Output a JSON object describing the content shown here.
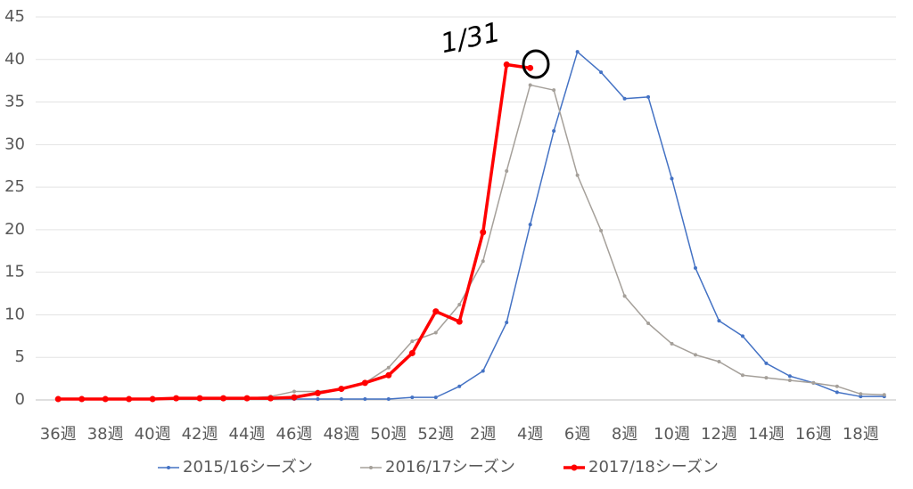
{
  "chart_data": {
    "type": "line",
    "categories": [
      "36週",
      null,
      "38週",
      null,
      "40週",
      null,
      "42週",
      null,
      "44週",
      null,
      "46週",
      null,
      "48週",
      null,
      "50週",
      null,
      "52週",
      null,
      "2週",
      null,
      "4週",
      null,
      "6週",
      null,
      "8週",
      null,
      "10週",
      null,
      "12週",
      null,
      "14週",
      null,
      "16週",
      null,
      "18週",
      null
    ],
    "series": [
      {
        "name": "2015/16シーズン",
        "color": "#4472c4",
        "values": [
          0.1,
          0.1,
          0.1,
          0.1,
          0.1,
          0.1,
          0.1,
          0.1,
          0.1,
          0.1,
          0.1,
          0.1,
          0.1,
          0.1,
          0.1,
          0.3,
          0.3,
          1.6,
          3.4,
          9.1,
          20.6,
          31.6,
          40.9,
          38.5,
          35.4,
          35.6,
          26.0,
          15.5,
          9.3,
          7.5,
          4.3,
          2.8,
          2.0,
          0.9,
          0.4,
          0.4
        ]
      },
      {
        "name": "2016/17シーズン",
        "color": "#a5a09a",
        "values": [
          0.1,
          0.1,
          0.1,
          0.1,
          0.1,
          0.1,
          0.2,
          0.2,
          0.2,
          0.4,
          1.0,
          1.0,
          1.3,
          2.0,
          3.8,
          6.9,
          7.9,
          11.2,
          16.3,
          26.9,
          37.0,
          36.4,
          26.4,
          19.9,
          12.2,
          9.0,
          6.6,
          5.3,
          4.5,
          2.9,
          2.6,
          2.3,
          2.0,
          1.6,
          0.7,
          0.6
        ]
      },
      {
        "name": "2017/18シーズン",
        "color": "#ff0000",
        "values": [
          0.1,
          0.1,
          0.1,
          0.1,
          0.1,
          0.2,
          0.2,
          0.2,
          0.2,
          0.2,
          0.3,
          0.8,
          1.3,
          2.0,
          2.9,
          5.5,
          10.4,
          9.2,
          19.7,
          39.4,
          39.0,
          null,
          null,
          null,
          null,
          null,
          null,
          null,
          null,
          null,
          null,
          null,
          null,
          null,
          null,
          null
        ]
      }
    ],
    "ylim": [
      0,
      45
    ],
    "yticks": [
      0,
      5,
      10,
      15,
      20,
      25,
      30,
      35,
      40,
      45
    ],
    "grid": true,
    "annotation": "1/31"
  }
}
